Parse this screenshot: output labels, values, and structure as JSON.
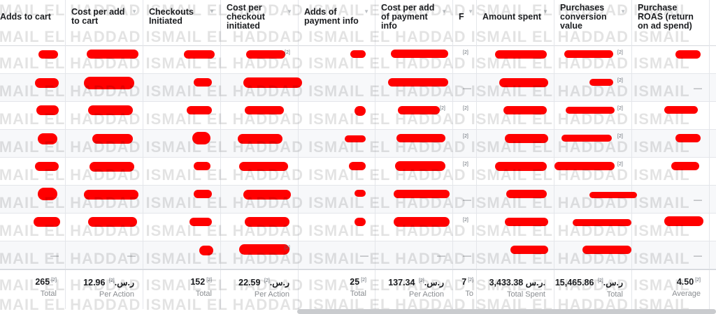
{
  "columns": [
    {
      "label": "Adds to cart"
    },
    {
      "label": "Cost per add\nto cart"
    },
    {
      "label": "Checkouts\nInitiated"
    },
    {
      "label": "Cost per\ncheckout\ninitiated"
    },
    {
      "label": "Adds of\npayment info"
    },
    {
      "label": "Cost per add\nof payment\ninfo"
    },
    {
      "label": "F"
    },
    {
      "label": "Amount spent"
    },
    {
      "label": "Purchases\nconversion\nvalue"
    },
    {
      "label": "Purchase\nROAS (return\non ad spend)"
    }
  ],
  "dash": "—",
  "footnote_marker": "[2]",
  "totals": [
    {
      "value": "265",
      "label": "Total"
    },
    {
      "value": "12.96 ر.س.",
      "label": "Per Action"
    },
    {
      "value": "152",
      "label": "Total"
    },
    {
      "value": "22.59 ر.س.",
      "label": "Per Action"
    },
    {
      "value": "25",
      "label": "Total"
    },
    {
      "value": "137.34 ر.س.",
      "label": "Per Action"
    },
    {
      "value": "7",
      "label": "To"
    },
    {
      "value": "3,433.38 ر.س.",
      "label": "Total Spent"
    },
    {
      "value": "15,465.86 ر.س.",
      "label": "Total"
    },
    {
      "value": "4.50",
      "label": "Average"
    }
  ],
  "watermark": "ISMAIL EL HADDAD ISMAIL EL HADDAD ISMAIL EL HADDAD ISMAIL EL HADDAD ISMAIL",
  "colors": {
    "redaction": "#ff0000",
    "border": "#e4e6ea",
    "header_text": "#1c1e21"
  }
}
